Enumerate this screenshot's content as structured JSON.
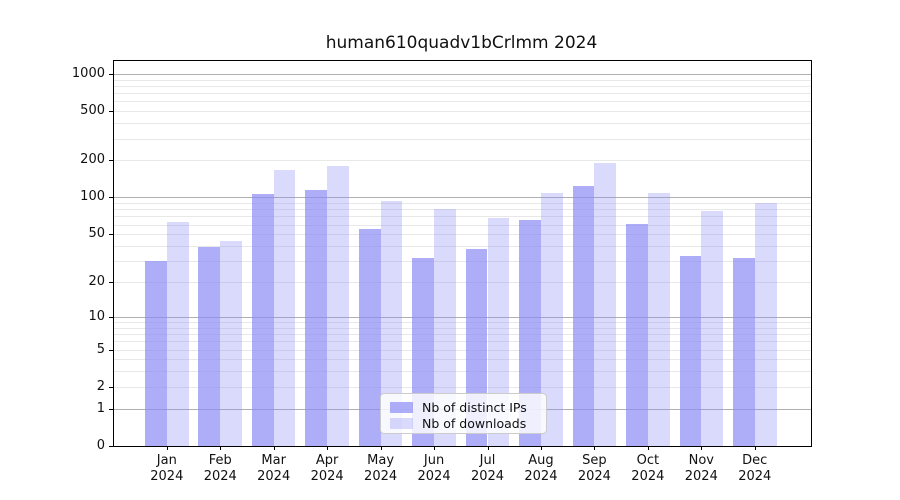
{
  "title": "human610quadv1bCrlmm 2024",
  "legend": {
    "items": [
      {
        "label": "Nb of distinct IPs",
        "color": "rgba(140,140,245,0.70)",
        "hex_on_white": "#aaaaf6"
      },
      {
        "label": "Nb of downloads",
        "color": "rgba(140,140,245,0.32)",
        "hex_on_white": "#d9d9f8"
      }
    ]
  },
  "y_axis": {
    "tick_labels": [
      "0",
      "1",
      "2",
      "5",
      "10",
      "20",
      "50",
      "100",
      "200",
      "500",
      "1000"
    ],
    "tick_values": [
      0,
      1,
      2,
      5,
      10,
      20,
      50,
      100,
      200,
      500,
      1000
    ]
  },
  "x_axis": {
    "months": [
      "Jan",
      "Feb",
      "Mar",
      "Apr",
      "May",
      "Jun",
      "Jul",
      "Aug",
      "Sep",
      "Oct",
      "Nov",
      "Dec"
    ],
    "year": "2024"
  },
  "chart_data": {
    "type": "bar",
    "scale": "log1p",
    "title": "human610quadv1bCrlmm 2024",
    "categories": [
      "Jan 2024",
      "Feb 2024",
      "Mar 2024",
      "Apr 2024",
      "May 2024",
      "Jun 2024",
      "Jul 2024",
      "Aug 2024",
      "Sep 2024",
      "Oct 2024",
      "Nov 2024",
      "Dec 2024"
    ],
    "series": [
      {
        "name": "Nb of distinct IPs",
        "values": [
          30,
          39,
          106,
          115,
          55,
          32,
          38,
          66,
          124,
          61,
          33,
          32
        ]
      },
      {
        "name": "Nb of downloads",
        "values": [
          63,
          44,
          166,
          180,
          94,
          81,
          68,
          108,
          189,
          109,
          77,
          91
        ]
      }
    ],
    "ylim": [
      0,
      1272
    ],
    "yticks": [
      0,
      1,
      2,
      5,
      10,
      20,
      50,
      100,
      200,
      500,
      1000
    ],
    "grid": "horizontal",
    "legend_position": "bottom-center-inside"
  },
  "colors": {
    "bar_base": "#8c8cf5",
    "major_gridline": "#b0b0b0",
    "minor_gridline": "#e8e8e8",
    "axis": "#000000",
    "text": "#111111"
  }
}
